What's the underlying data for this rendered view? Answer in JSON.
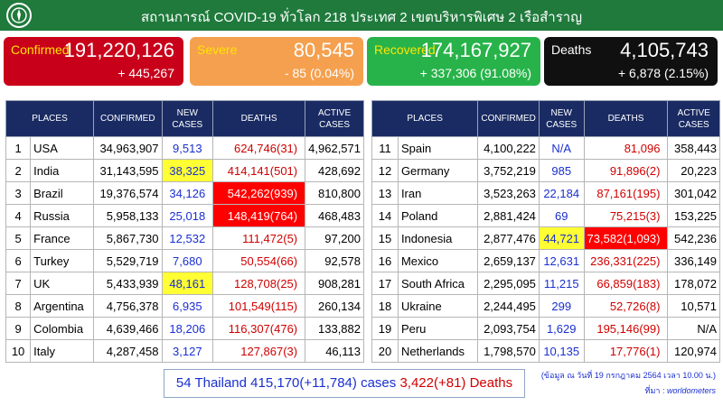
{
  "header": {
    "title": "สถานการณ์ COVID-19 ทั่วโลก 218 ประเทศ 2 เขตบริหารพิเศษ 2 เรือสำราญ"
  },
  "summary": {
    "confirmed": {
      "label": "Confirmed",
      "value": "191,220,126",
      "delta": "+ 445,267"
    },
    "severe": {
      "label": "Severe",
      "value": "80,545",
      "delta": "- 85 (0.04%)"
    },
    "recovered": {
      "label": "Recovered",
      "value": "174,167,927",
      "delta": "+ 337,306 (91.08%)"
    },
    "deaths": {
      "label": "Deaths",
      "value": "4,105,743",
      "delta": "+ 6,878 (2.15%)"
    }
  },
  "columns": [
    "PLACES",
    "CONFIRMED",
    "NEW CASES",
    "DEATHS",
    "ACTIVE CASES"
  ],
  "left_rows": [
    {
      "rank": "1",
      "place": "USA",
      "confirmed": "34,963,907",
      "new": "9,513",
      "deaths": "624,746(31)",
      "active": "4,962,571",
      "hl_new": false,
      "hl_deaths": false
    },
    {
      "rank": "2",
      "place": "India",
      "confirmed": "31,143,595",
      "new": "38,325",
      "deaths": "414,141(501)",
      "active": "428,692",
      "hl_new": true,
      "hl_deaths": false
    },
    {
      "rank": "3",
      "place": "Brazil",
      "confirmed": "19,376,574",
      "new": "34,126",
      "deaths": "542,262(939)",
      "active": "810,800",
      "hl_new": false,
      "hl_deaths": true
    },
    {
      "rank": "4",
      "place": "Russia",
      "confirmed": "5,958,133",
      "new": "25,018",
      "deaths": "148,419(764)",
      "active": "468,483",
      "hl_new": false,
      "hl_deaths": true
    },
    {
      "rank": "5",
      "place": "France",
      "confirmed": "5,867,730",
      "new": "12,532",
      "deaths": "111,472(5)",
      "active": "97,200",
      "hl_new": false,
      "hl_deaths": false
    },
    {
      "rank": "6",
      "place": "Turkey",
      "confirmed": "5,529,719",
      "new": "7,680",
      "deaths": "50,554(66)",
      "active": "92,578",
      "hl_new": false,
      "hl_deaths": false
    },
    {
      "rank": "7",
      "place": "UK",
      "confirmed": "5,433,939",
      "new": "48,161",
      "deaths": "128,708(25)",
      "active": "908,281",
      "hl_new": true,
      "hl_deaths": false
    },
    {
      "rank": "8",
      "place": "Argentina",
      "confirmed": "4,756,378",
      "new": "6,935",
      "deaths": "101,549(115)",
      "active": "260,134",
      "hl_new": false,
      "hl_deaths": false
    },
    {
      "rank": "9",
      "place": "Colombia",
      "confirmed": "4,639,466",
      "new": "18,206",
      "deaths": "116,307(476)",
      "active": "133,882",
      "hl_new": false,
      "hl_deaths": false
    },
    {
      "rank": "10",
      "place": "Italy",
      "confirmed": "4,287,458",
      "new": "3,127",
      "deaths": "127,867(3)",
      "active": "46,113",
      "hl_new": false,
      "hl_deaths": false
    }
  ],
  "right_rows": [
    {
      "rank": "11",
      "place": "Spain",
      "confirmed": "4,100,222",
      "new": "N/A",
      "deaths": "81,096",
      "active": "358,443",
      "hl_new": false,
      "hl_deaths": false
    },
    {
      "rank": "12",
      "place": "Germany",
      "confirmed": "3,752,219",
      "new": "985",
      "deaths": "91,896(2)",
      "active": "20,223",
      "hl_new": false,
      "hl_deaths": false
    },
    {
      "rank": "13",
      "place": "Iran",
      "confirmed": "3,523,263",
      "new": "22,184",
      "deaths": "87,161(195)",
      "active": "301,042",
      "hl_new": false,
      "hl_deaths": false
    },
    {
      "rank": "14",
      "place": "Poland",
      "confirmed": "2,881,424",
      "new": "69",
      "deaths": "75,215(3)",
      "active": "153,225",
      "hl_new": false,
      "hl_deaths": false
    },
    {
      "rank": "15",
      "place": "Indonesia",
      "confirmed": "2,877,476",
      "new": "44,721",
      "deaths": "73,582(1,093)",
      "active": "542,236",
      "hl_new": true,
      "hl_deaths": true
    },
    {
      "rank": "16",
      "place": "Mexico",
      "confirmed": "2,659,137",
      "new": "12,631",
      "deaths": "236,331(225)",
      "active": "336,149",
      "hl_new": false,
      "hl_deaths": false
    },
    {
      "rank": "17",
      "place": "South Africa",
      "confirmed": "2,295,095",
      "new": "11,215",
      "deaths": "66,859(183)",
      "active": "178,072",
      "hl_new": false,
      "hl_deaths": false
    },
    {
      "rank": "18",
      "place": "Ukraine",
      "confirmed": "2,244,495",
      "new": "299",
      "deaths": "52,726(8)",
      "active": "10,571",
      "hl_new": false,
      "hl_deaths": false
    },
    {
      "rank": "19",
      "place": "Peru",
      "confirmed": "2,093,754",
      "new": "1,629",
      "deaths": "195,146(99)",
      "active": "N/A",
      "hl_new": false,
      "hl_deaths": false
    },
    {
      "rank": "20",
      "place": "Netherlands",
      "confirmed": "1,798,570",
      "new": "10,135",
      "deaths": "17,776(1)",
      "active": "120,974",
      "hl_new": false,
      "hl_deaths": false
    }
  ],
  "thailand": {
    "text_blue": "54 Thailand 415,170(+11,784) cases",
    "text_red": "3,422(+81) Deaths"
  },
  "footer": {
    "date_note": "(ข้อมูล ณ วันที่ 19 กรกฎาคม 2564 เวลา 10.00 น.)",
    "source_label": "ที่มา :",
    "source_value": "worldometers"
  },
  "colors": {
    "header": "#1f7a3c",
    "table_header": "#1a2b63",
    "highlight_yellow": "#ffff33",
    "highlight_red": "#ff0000"
  }
}
